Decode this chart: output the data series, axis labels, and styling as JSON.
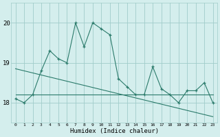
{
  "x": [
    0,
    1,
    2,
    3,
    4,
    5,
    6,
    7,
    8,
    9,
    10,
    11,
    12,
    13,
    14,
    15,
    16,
    17,
    18,
    19,
    20,
    21,
    22,
    23
  ],
  "y_main": [
    18.1,
    18.0,
    18.2,
    18.8,
    19.3,
    19.1,
    19.0,
    20.0,
    19.4,
    20.0,
    19.85,
    19.7,
    18.6,
    18.4,
    18.2,
    18.2,
    18.9,
    18.35,
    18.2,
    18.0,
    18.3,
    18.3,
    18.5,
    18.0
  ],
  "trend1_x": [
    0,
    23
  ],
  "trend1_y": [
    18.2,
    18.2
  ],
  "trend2_x": [
    0,
    23
  ],
  "trend2_y": [
    18.85,
    17.65
  ],
  "line_color": "#2a7a6a",
  "bg_color": "#d4eeed",
  "grid_color": "#a0ccca",
  "xlabel": "Humidex (Indice chaleur)",
  "yticks": [
    18,
    19,
    20
  ],
  "xticks": [
    0,
    1,
    2,
    3,
    4,
    5,
    6,
    7,
    8,
    9,
    10,
    11,
    12,
    13,
    14,
    15,
    16,
    17,
    18,
    19,
    20,
    21,
    22,
    23
  ],
  "ylim": [
    17.5,
    20.5
  ],
  "xlim": [
    -0.5,
    23.5
  ]
}
